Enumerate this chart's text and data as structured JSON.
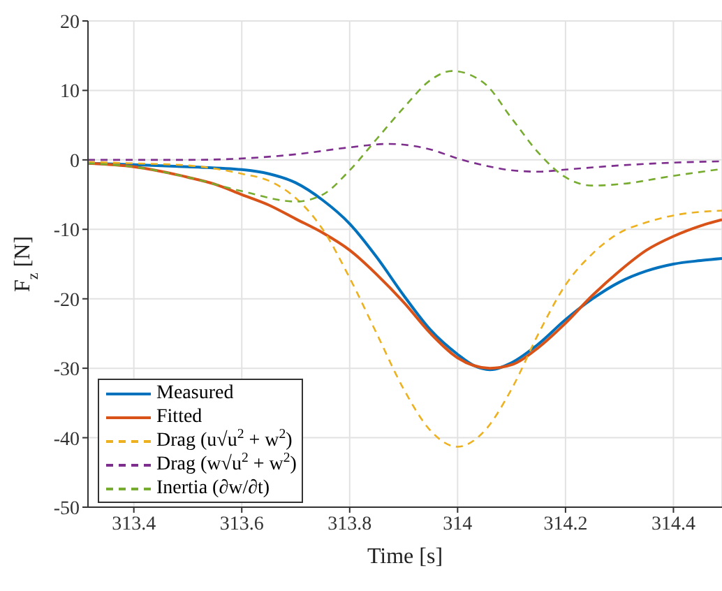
{
  "chart_data": {
    "type": "line",
    "xlabel": "Time [s]",
    "ylabel": "F$_{z}$ [N]",
    "xlim": [
      313.315,
      314.49
    ],
    "xticks": [
      313.4,
      313.6,
      313.8,
      314,
      314.2,
      314.4
    ],
    "ylim": [
      -50,
      20
    ],
    "yticks": [
      -50,
      -40,
      -30,
      -20,
      -10,
      0,
      10,
      20
    ],
    "grid": true,
    "legend": "bottom left",
    "marker": "none",
    "series": [
      {
        "name": "Measured",
        "color": "#0072bd",
        "line_style": "solid",
        "x": [
          313.315,
          313.4,
          313.5,
          313.6,
          313.65,
          313.7,
          313.75,
          313.8,
          313.85,
          313.9,
          313.95,
          314.0,
          314.03,
          314.06,
          314.1,
          314.15,
          314.2,
          314.25,
          314.3,
          314.35,
          314.4,
          314.45,
          314.49
        ],
        "values": [
          -0.5,
          -0.7,
          -1.0,
          -1.4,
          -2.0,
          -3.3,
          -5.8,
          -9.2,
          -14,
          -19.5,
          -24.5,
          -28,
          -29.6,
          -30.2,
          -29.2,
          -26.5,
          -23,
          -20,
          -17.6,
          -16,
          -15,
          -14.5,
          -14.2
        ]
      },
      {
        "name": "Fitted",
        "color": "#d95319",
        "line_style": "solid",
        "x": [
          313.315,
          313.4,
          313.5,
          313.55,
          313.6,
          313.65,
          313.7,
          313.75,
          313.8,
          313.85,
          313.9,
          313.95,
          314.0,
          314.06,
          314.1,
          314.15,
          314.2,
          314.25,
          314.3,
          314.35,
          314.4,
          314.45,
          314.49
        ],
        "values": [
          -0.5,
          -1,
          -2.5,
          -3.5,
          -5,
          -6.5,
          -8.5,
          -10.5,
          -13,
          -16.5,
          -20.5,
          -25,
          -28.5,
          -30,
          -29.5,
          -27,
          -23.5,
          -19.5,
          -16,
          -13,
          -11,
          -9.5,
          -8.6
        ]
      },
      {
        "name": "Drag (u√u$^{2}$ + w$^{2}$)",
        "color": "#edb120",
        "line_style": "dashed",
        "x": [
          313.315,
          313.4,
          313.5,
          313.6,
          313.65,
          313.7,
          313.75,
          313.8,
          313.85,
          313.9,
          313.95,
          314.0,
          314.05,
          314.1,
          314.15,
          314.2,
          314.25,
          314.3,
          314.35,
          314.4,
          314.49
        ],
        "values": [
          -0.3,
          -0.5,
          -0.8,
          -2,
          -3,
          -5.5,
          -10,
          -17,
          -25,
          -33,
          -39,
          -41.3,
          -39,
          -33,
          -25,
          -18,
          -13.5,
          -10.5,
          -9,
          -8,
          -7.3
        ]
      },
      {
        "name": "Drag (w√u$^{2}$ + w$^{2}$)",
        "color": "#7e2f8e",
        "line_style": "dashed",
        "x": [
          313.315,
          313.5,
          313.6,
          313.7,
          313.8,
          313.87,
          313.95,
          314.0,
          314.05,
          314.1,
          314.15,
          314.2,
          314.3,
          314.4,
          314.49
        ],
        "values": [
          0,
          0,
          0.2,
          0.8,
          1.8,
          2.3,
          1.5,
          0.2,
          -0.8,
          -1.5,
          -1.7,
          -1.4,
          -0.8,
          -0.4,
          -0.2
        ]
      },
      {
        "name": "Inertia (∂w/∂t)",
        "color": "#77ac30",
        "line_style": "dashed",
        "x": [
          313.315,
          313.4,
          313.5,
          313.6,
          313.7,
          313.75,
          313.8,
          313.85,
          313.9,
          313.95,
          313.99,
          314.05,
          314.1,
          314.15,
          314.2,
          314.25,
          314.3,
          314.4,
          314.49
        ],
        "values": [
          -0.5,
          -1,
          -2.5,
          -4.5,
          -6,
          -5,
          -1.5,
          3,
          7.5,
          11.5,
          12.8,
          11,
          6,
          1,
          -2.5,
          -3.7,
          -3.5,
          -2.3,
          -1.3
        ]
      }
    ]
  }
}
